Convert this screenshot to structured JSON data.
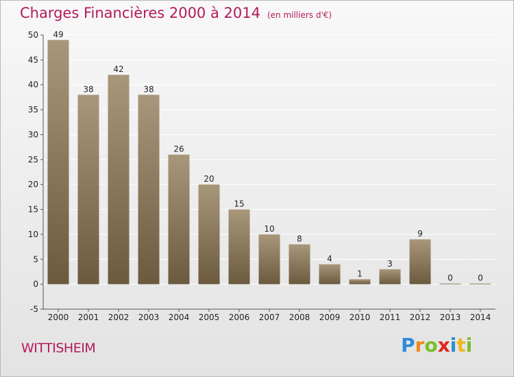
{
  "header": {
    "title": "Charges Financières 2000 à 2014",
    "unit": "(en milliers d'€)"
  },
  "footer": {
    "commune": "WITTISHEIM",
    "brand_letters": [
      {
        "char": "P",
        "color": "#2e8bd8"
      },
      {
        "char": "r",
        "color": "#f08a1c"
      },
      {
        "char": "o",
        "color": "#7bbf2a"
      },
      {
        "char": "x",
        "color": "#e0281e"
      },
      {
        "char": "i",
        "color": "#2e8bd8"
      },
      {
        "char": "t",
        "color": "#f0b81c"
      },
      {
        "char": "i",
        "color": "#7bbf2a"
      }
    ]
  },
  "colors": {
    "title": "#b3195b",
    "bar_top": "#a8977a",
    "bar_bottom": "#6b5a3e",
    "grid": "#ffffff",
    "axis": "#555555"
  },
  "chart_data": {
    "type": "bar",
    "categories": [
      "2000",
      "2001",
      "2002",
      "2003",
      "2004",
      "2005",
      "2006",
      "2007",
      "2008",
      "2009",
      "2010",
      "2011",
      "2012",
      "2013",
      "2014"
    ],
    "values": [
      49,
      38,
      42,
      38,
      26,
      20,
      15,
      10,
      8,
      4,
      1,
      3,
      9,
      0,
      0
    ],
    "data_labels": [
      "49",
      "38",
      "42",
      "38",
      "26",
      "20",
      "15",
      "10",
      "8",
      "4",
      "1",
      "3",
      "9",
      "0",
      "0"
    ],
    "title": "Charges Financières 2000 à 2014",
    "ylim": [
      -5,
      50
    ],
    "yticks": [
      -5,
      0,
      5,
      10,
      15,
      20,
      25,
      30,
      35,
      40,
      45,
      50
    ],
    "ytick_labels": [
      "-5",
      "0",
      "5",
      "10",
      "15",
      "20",
      "25",
      "30",
      "35",
      "40",
      "45",
      "50"
    ],
    "grid": true
  }
}
